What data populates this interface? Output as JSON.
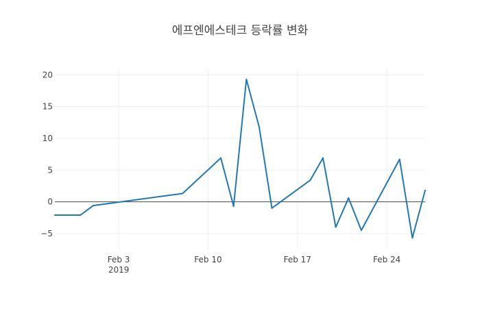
{
  "chart_data": {
    "type": "line",
    "title": "에프엔에스테크 등락률 변화",
    "xlabel": "",
    "ylabel": "",
    "x_tick_labels": [
      {
        "date": "2019-02-03",
        "label": "Feb 3",
        "sublabel": "2019"
      },
      {
        "date": "2019-02-10",
        "label": "Feb 10",
        "sublabel": ""
      },
      {
        "date": "2019-02-17",
        "label": "Feb 17",
        "sublabel": ""
      },
      {
        "date": "2019-02-24",
        "label": "Feb 24",
        "sublabel": ""
      }
    ],
    "y_ticks": [
      {
        "value": -5,
        "label": "−5"
      },
      {
        "value": 0,
        "label": "0"
      },
      {
        "value": 5,
        "label": "5"
      },
      {
        "value": 10,
        "label": "10"
      },
      {
        "value": 15,
        "label": "15"
      },
      {
        "value": 20,
        "label": "20"
      }
    ],
    "xlim": [
      "2019-01-29",
      "2019-02-27"
    ],
    "ylim": [
      -7.6,
      21
    ],
    "grid": true,
    "zero_line": true,
    "line_color": "#1f77b4",
    "series": [
      {
        "x": [
          "2019-01-29",
          "2019-01-31",
          "2019-02-01",
          "2019-02-08",
          "2019-02-11",
          "2019-02-12",
          "2019-02-13",
          "2019-02-14",
          "2019-02-15",
          "2019-02-18",
          "2019-02-19",
          "2019-02-20",
          "2019-02-21",
          "2019-02-22",
          "2019-02-25",
          "2019-02-26",
          "2019-02-27"
        ],
        "values": [
          -2.1,
          -2.1,
          -0.6,
          1.3,
          6.9,
          -0.7,
          19.3,
          11.8,
          -1.0,
          3.4,
          6.9,
          -4.0,
          0.6,
          -4.5,
          6.7,
          -5.7,
          1.8
        ]
      }
    ]
  }
}
